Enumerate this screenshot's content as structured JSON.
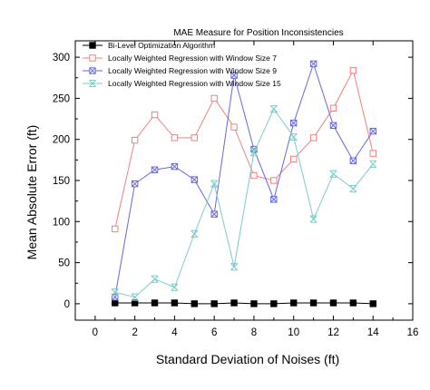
{
  "chart_data": {
    "type": "line",
    "title": "MAE Measure for Position Inconsistencies",
    "xlabel": "Standard Deviation of Noises (ft)",
    "ylabel": "Mean Absolute Error (ft)",
    "xlim": [
      -1,
      16
    ],
    "ylim": [
      -20,
      320
    ],
    "xticks": [
      0,
      2,
      4,
      6,
      8,
      10,
      12,
      14,
      16
    ],
    "yticks": [
      0,
      50,
      100,
      150,
      200,
      250,
      300
    ],
    "grid": false,
    "legend_position": "top-left",
    "x": [
      1,
      2,
      3,
      4,
      5,
      6,
      7,
      8,
      9,
      10,
      11,
      12,
      13,
      14
    ],
    "series": [
      {
        "name": "Bi-Level Optimization Algorithm",
        "color": "#000000",
        "marker": "filled-square",
        "values": [
          1,
          1,
          1,
          1,
          0,
          0,
          1,
          0,
          0,
          1,
          1,
          1,
          1,
          0
        ]
      },
      {
        "name": "Locally Weighted Regression with Window Size 7",
        "color": "#f08080",
        "marker": "open-square",
        "values": [
          91,
          199,
          230,
          202,
          202,
          250,
          215,
          156,
          150,
          176,
          202,
          238,
          284,
          183
        ]
      },
      {
        "name": "Locally Weighted Regression with Window Size 9",
        "color": "#6666e0",
        "marker": "crossed-square",
        "values": [
          8,
          146,
          163,
          167,
          151,
          109,
          278,
          188,
          127,
          220,
          292,
          217,
          174,
          210
        ]
      },
      {
        "name": "Locally Weighted Regression with Window Size 15",
        "color": "#7ccccc",
        "marker": "x",
        "values": [
          14,
          8,
          30,
          20,
          85,
          146,
          45,
          184,
          237,
          203,
          103,
          158,
          140,
          170
        ]
      }
    ]
  }
}
